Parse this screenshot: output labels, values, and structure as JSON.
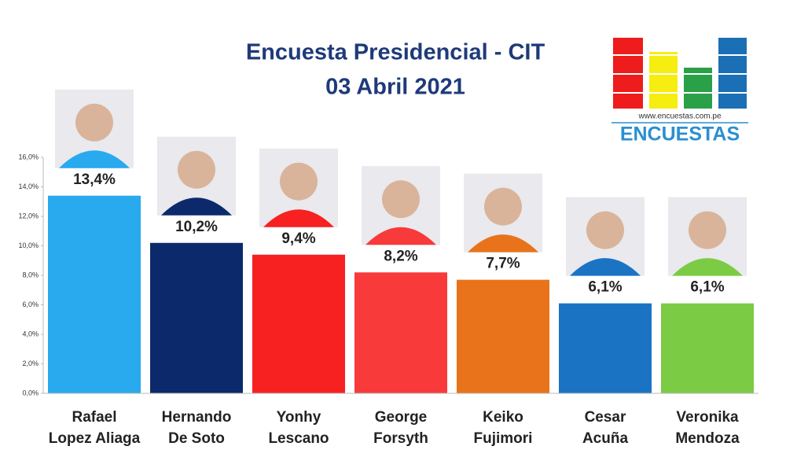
{
  "chart_data": {
    "type": "bar",
    "title": "Encuesta Presidencial - CIT",
    "subtitle": "03 Abril 2021",
    "source_url": "www.encuestas.com.pe",
    "brand": "ENCUESTAS",
    "categories": [
      "Rafael\nLopez Aliaga",
      "Hernando\nDe Soto",
      "Yonhy\nLescano",
      "George\nForsyth",
      "Keiko\nFujimori",
      "Cesar\nAcuña",
      "Veronika\nMendoza"
    ],
    "values": [
      13.4,
      10.2,
      9.4,
      8.2,
      7.7,
      6.1,
      6.1
    ],
    "value_labels": [
      "13,4%",
      "10,2%",
      "9,4%",
      "8,2%",
      "7,7%",
      "6,1%",
      "6,1%"
    ],
    "colors": [
      "#29a9ee",
      "#0c2a6b",
      "#f72121",
      "#f83a3a",
      "#e8731a",
      "#1b73c4",
      "#7ccb45"
    ],
    "ylim": [
      0,
      16
    ],
    "yticks": [
      {
        "value": 0,
        "label": "0,0%"
      },
      {
        "value": 2,
        "label": "2,0%"
      },
      {
        "value": 4,
        "label": "4,0%"
      },
      {
        "value": 6,
        "label": "6,0%"
      },
      {
        "value": 8,
        "label": "8,0%"
      },
      {
        "value": 10,
        "label": "10,0%"
      },
      {
        "value": 12,
        "label": "12,0%"
      },
      {
        "value": 14,
        "label": "14,0%"
      },
      {
        "value": 16,
        "label": "16,0%"
      }
    ]
  }
}
